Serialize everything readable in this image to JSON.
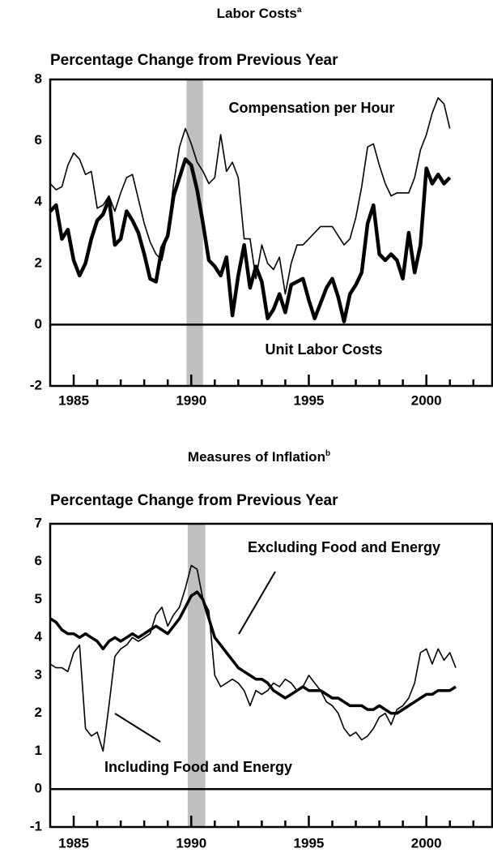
{
  "chart_data": [
    {
      "type": "line",
      "title": "Labor Costs",
      "title_note": "a",
      "subtitle": "Percentage Change from Previous Year",
      "x": [
        1984,
        1984.25,
        1984.5,
        1984.75,
        1985,
        1985.25,
        1985.5,
        1985.75,
        1986,
        1986.25,
        1986.5,
        1986.75,
        1987,
        1987.25,
        1987.5,
        1987.75,
        1988,
        1988.25,
        1988.5,
        1988.75,
        1989,
        1989.25,
        1989.5,
        1989.75,
        1990,
        1990.25,
        1990.5,
        1990.75,
        1991,
        1991.25,
        1991.5,
        1991.75,
        1992,
        1992.25,
        1992.5,
        1992.75,
        1993,
        1993.25,
        1993.5,
        1993.75,
        1994,
        1994.25,
        1994.5,
        1994.75,
        1995,
        1995.25,
        1995.5,
        1995.75,
        1996,
        1996.25,
        1996.5,
        1996.75,
        1997,
        1997.25,
        1997.5,
        1997.75,
        1998,
        1998.25,
        1998.5,
        1998.75,
        1999,
        1999.25,
        1999.5,
        1999.75,
        2000,
        2000.25,
        2000.5,
        2000.75,
        2001
      ],
      "series": [
        {
          "name": "Compensation per Hour",
          "color": "#000000",
          "values": [
            4.6,
            4.4,
            4.5,
            5.2,
            5.6,
            5.4,
            4.9,
            5.0,
            3.8,
            3.9,
            4.2,
            3.7,
            4.3,
            4.8,
            4.9,
            4.1,
            3.3,
            2.7,
            2.3,
            2.1,
            3.0,
            4.6,
            5.8,
            6.4,
            5.9,
            5.3,
            5.0,
            4.6,
            4.8,
            6.2,
            5.0,
            5.3,
            4.8,
            2.8,
            2.8,
            1.5,
            2.6,
            2.0,
            1.8,
            2.2,
            1.0,
            2.0,
            2.6,
            2.6,
            2.8,
            3.0,
            3.2,
            3.2,
            3.2,
            2.9,
            2.6,
            2.8,
            3.5,
            4.5,
            5.8,
            5.9,
            5.2,
            4.6,
            4.2,
            4.3,
            4.3,
            4.3,
            4.8,
            5.7,
            6.2,
            6.9,
            7.4,
            7.2,
            6.4
          ]
        },
        {
          "name": "Unit Labor Costs",
          "color": "#000000",
          "values": [
            3.7,
            3.9,
            2.8,
            3.1,
            2.1,
            1.6,
            2.0,
            2.8,
            3.4,
            3.6,
            4.1,
            2.6,
            2.8,
            3.7,
            3.4,
            3.0,
            2.3,
            1.5,
            1.4,
            2.5,
            2.9,
            4.2,
            4.8,
            5.4,
            5.2,
            4.4,
            3.3,
            2.1,
            1.9,
            1.6,
            2.2,
            0.3,
            1.6,
            2.6,
            1.2,
            1.9,
            1.4,
            0.2,
            0.5,
            1.0,
            0.4,
            1.3,
            1.4,
            1.5,
            0.8,
            0.2,
            0.7,
            1.2,
            1.5,
            0.9,
            0.1,
            1.0,
            1.3,
            1.7,
            3.3,
            3.9,
            2.3,
            2.1,
            2.3,
            2.1,
            1.5,
            3.0,
            1.7,
            2.6,
            5.1,
            4.6,
            4.9,
            4.6,
            4.8
          ]
        }
      ],
      "xlim": [
        1984,
        2002.8
      ],
      "xticks": [
        1985,
        1990,
        1995,
        2000
      ],
      "xminorticks": [
        1986,
        1987,
        1988,
        1989,
        1991,
        1992,
        1993,
        1994,
        1996,
        1997,
        1998,
        1999,
        2001,
        2002
      ],
      "ylim": [
        -2,
        8
      ],
      "yticks": [
        -2,
        0,
        2,
        4,
        6,
        8
      ],
      "shade": [
        1989.8,
        1990.5
      ],
      "shade_color": "#c0c0c0"
    },
    {
      "type": "line",
      "title": "Measures of Inflation",
      "title_note": "b",
      "subtitle": "Percentage Change from Previous Year",
      "x": [
        1984,
        1984.25,
        1984.5,
        1984.75,
        1985,
        1985.25,
        1985.5,
        1985.75,
        1986,
        1986.25,
        1986.5,
        1986.75,
        1987,
        1987.25,
        1987.5,
        1987.75,
        1988,
        1988.25,
        1988.5,
        1988.75,
        1989,
        1989.25,
        1989.5,
        1989.75,
        1990,
        1990.25,
        1990.5,
        1990.75,
        1991,
        1991.25,
        1991.5,
        1991.75,
        1992,
        1992.25,
        1992.5,
        1992.75,
        1993,
        1993.25,
        1993.5,
        1993.75,
        1994,
        1994.25,
        1994.5,
        1994.75,
        1995,
        1995.25,
        1995.5,
        1995.75,
        1996,
        1996.25,
        1996.5,
        1996.75,
        1997,
        1997.25,
        1997.5,
        1997.75,
        1998,
        1998.25,
        1998.5,
        1998.75,
        1999,
        1999.25,
        1999.5,
        1999.75,
        2000,
        2000.25,
        2000.5,
        2000.75,
        2001,
        2001.25
      ],
      "series": [
        {
          "name": "Excluding Food and Energy",
          "color": "#000000",
          "values": [
            4.5,
            4.4,
            4.2,
            4.1,
            4.1,
            4.0,
            4.1,
            4.0,
            3.9,
            3.7,
            3.9,
            4.0,
            3.9,
            4.0,
            4.1,
            4.0,
            4.1,
            4.2,
            4.3,
            4.2,
            4.1,
            4.3,
            4.5,
            4.8,
            5.1,
            5.2,
            5.0,
            4.5,
            4.0,
            3.8,
            3.6,
            3.4,
            3.2,
            3.1,
            3.0,
            2.9,
            2.9,
            2.8,
            2.6,
            2.5,
            2.4,
            2.5,
            2.6,
            2.7,
            2.6,
            2.6,
            2.6,
            2.5,
            2.4,
            2.4,
            2.3,
            2.2,
            2.2,
            2.2,
            2.1,
            2.1,
            2.2,
            2.1,
            2.0,
            2.0,
            2.1,
            2.2,
            2.3,
            2.4,
            2.5,
            2.5,
            2.6,
            2.6,
            2.6,
            2.7
          ]
        },
        {
          "name": "Including Food and Energy",
          "color": "#000000",
          "values": [
            3.3,
            3.2,
            3.2,
            3.1,
            3.6,
            3.8,
            1.6,
            1.4,
            1.5,
            1.0,
            2.2,
            3.5,
            3.7,
            3.8,
            4.0,
            3.9,
            4.0,
            4.1,
            4.6,
            4.8,
            4.3,
            4.6,
            4.8,
            5.3,
            5.9,
            5.8,
            5.0,
            4.7,
            3.0,
            2.7,
            2.8,
            2.9,
            2.8,
            2.6,
            2.2,
            2.6,
            2.5,
            2.6,
            2.8,
            2.7,
            2.9,
            2.8,
            2.6,
            2.7,
            3.0,
            2.8,
            2.6,
            2.3,
            2.2,
            2.0,
            1.6,
            1.4,
            1.5,
            1.3,
            1.4,
            1.6,
            1.9,
            2.0,
            1.7,
            2.1,
            2.2,
            2.4,
            2.8,
            3.6,
            3.7,
            3.3,
            3.7,
            3.4,
            3.6,
            3.2
          ]
        }
      ],
      "xlim": [
        1984,
        2002.8
      ],
      "xticks": [
        1985,
        1990,
        1995,
        2000
      ],
      "xminorticks": [
        1986,
        1987,
        1988,
        1989,
        1991,
        1992,
        1993,
        1994,
        1996,
        1997,
        1998,
        1999,
        2001,
        2002
      ],
      "ylim": [
        -1,
        7
      ],
      "yticks": [
        -1,
        0,
        1,
        2,
        3,
        4,
        5,
        6,
        7
      ],
      "shade": [
        1989.85,
        1990.6
      ],
      "shade_color": "#c0c0c0"
    }
  ]
}
